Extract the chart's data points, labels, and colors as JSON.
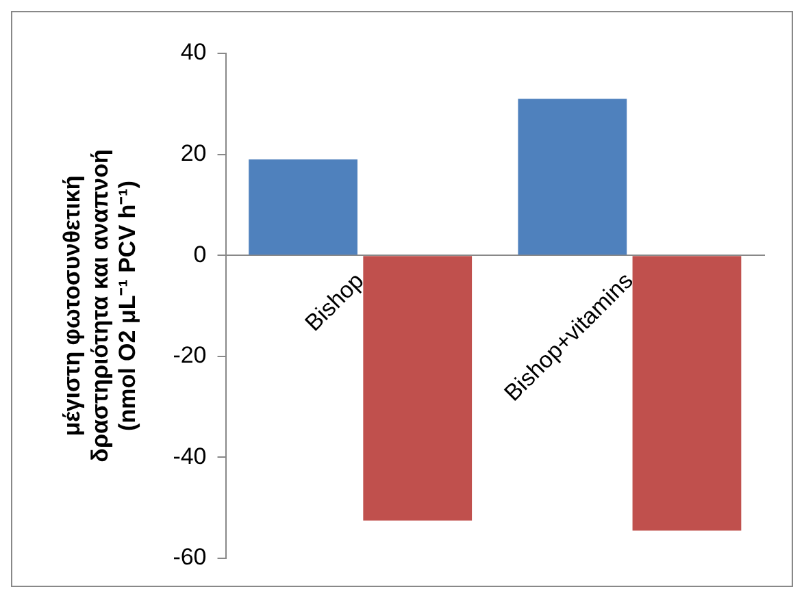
{
  "chart_data": {
    "type": "bar",
    "ylabel": [
      "μέγιστη φωτοσυνθετική",
      "δραστηριότητα και αναπνοή",
      "(nmol O2 μL⁻¹ PCV h⁻¹)"
    ],
    "categories": [
      "Bishop",
      "Bishop+vitamins"
    ],
    "series": [
      {
        "color": "#4f81bd",
        "values": [
          19,
          31
        ]
      },
      {
        "color": "#c0504d",
        "values": [
          -52.5,
          -54.5
        ]
      }
    ],
    "ylim": [
      -60,
      40
    ],
    "yticks": [
      -60,
      -40,
      -20,
      0,
      20,
      40
    ],
    "grid": false,
    "legend": false
  }
}
